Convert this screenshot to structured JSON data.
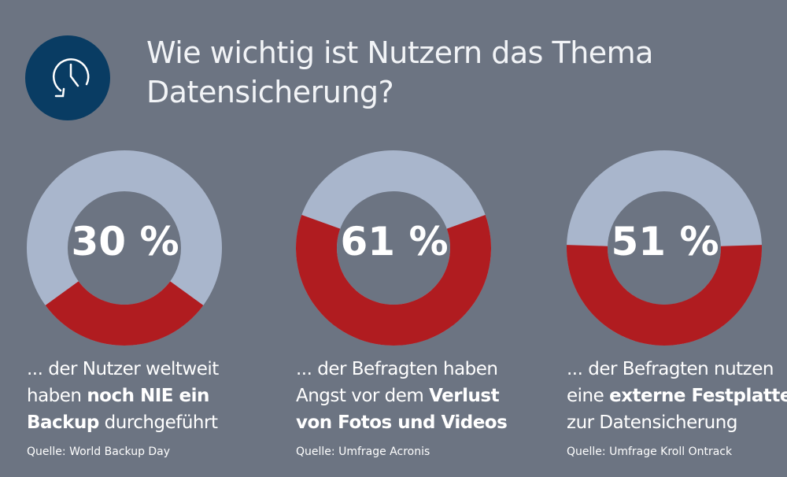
{
  "title": [
    "Wie wichtig ist Nutzern das Thema",
    "Datensicherung?"
  ],
  "icon": "backup-clock-icon",
  "colors": {
    "background": "#6c7482",
    "highlight": "#b01c20",
    "rest": "#a9b6cc",
    "icon_bg": "#093c63"
  },
  "chart_data": [
    {
      "type": "pie",
      "variant": "donut",
      "value": 30,
      "label": "30 %",
      "desc": [
        {
          "t": "... der Nutzer weltweit",
          "b": false
        },
        {
          "t": "haben ",
          "b": false
        },
        {
          "t": "noch NIE ein",
          "b": true
        },
        {
          "t": "Backup",
          "b": true
        },
        {
          "t": " durchgeführt",
          "b": false
        }
      ],
      "source": "Quelle: World Backup Day"
    },
    {
      "type": "pie",
      "variant": "donut",
      "value": 61,
      "label": "61 %",
      "desc": [
        {
          "t": "... der Befragten haben",
          "b": false
        },
        {
          "t": "Angst vor dem ",
          "b": false
        },
        {
          "t": "Verlust",
          "b": true
        },
        {
          "t": "von Fotos und Videos",
          "b": true
        },
        {
          "t": "",
          "b": false
        }
      ],
      "source": "Quelle: Umfrage Acronis"
    },
    {
      "type": "pie",
      "variant": "donut",
      "value": 51,
      "label": "51 %",
      "desc": [
        {
          "t": "... der Befragten nutzen",
          "b": false
        },
        {
          "t": "eine ",
          "b": false
        },
        {
          "t": "externe Festplatte",
          "b": true
        },
        {
          "t": "zur Datensicherung",
          "b": false
        },
        {
          "t": "",
          "b": false
        }
      ],
      "source": "Quelle: Umfrage Kroll Ontrack"
    }
  ]
}
